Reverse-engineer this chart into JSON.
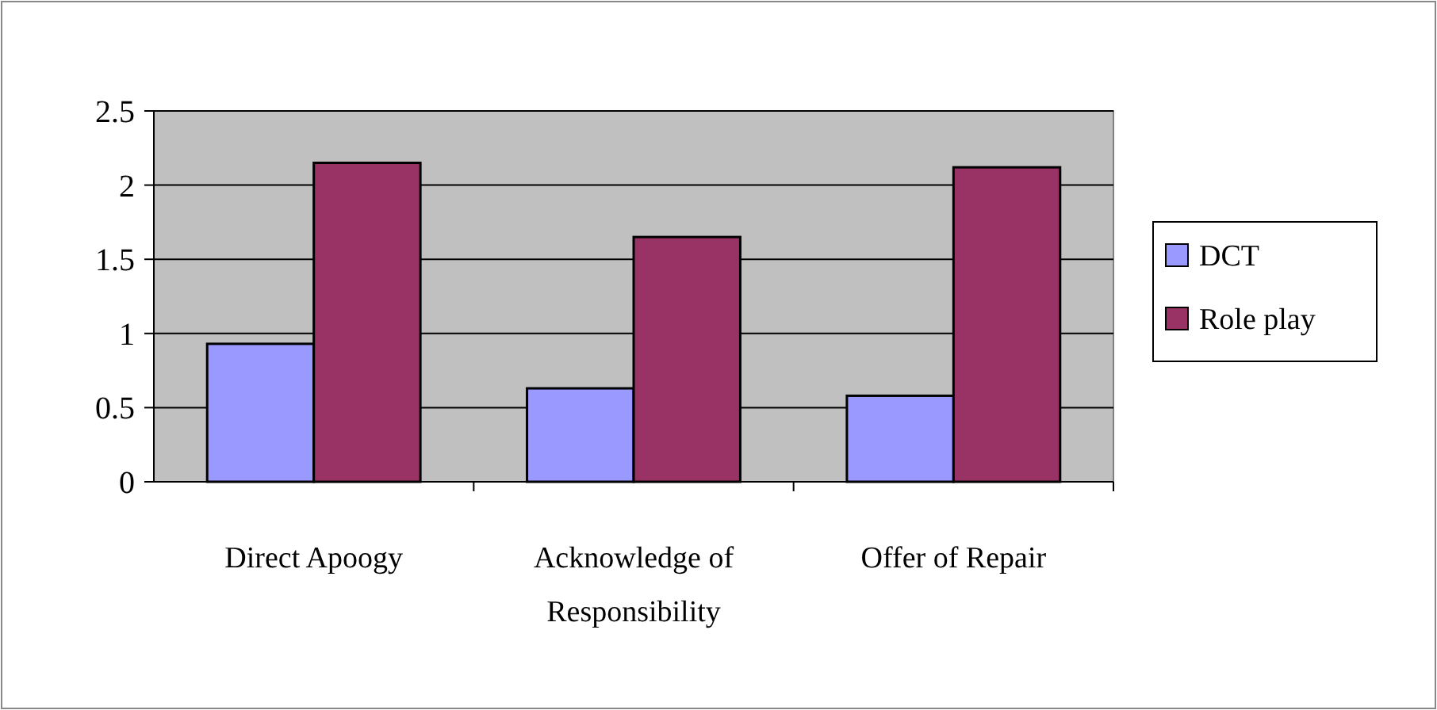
{
  "chart_data": {
    "type": "bar",
    "categories": [
      "Direct Apoogy",
      "Acknowledge of Responsibility",
      "Offer of Repair"
    ],
    "series": [
      {
        "name": "DCT",
        "color": "#9999ff",
        "values": [
          0.93,
          0.63,
          0.58
        ]
      },
      {
        "name": "Role play",
        "color": "#993366",
        "values": [
          2.15,
          1.65,
          2.12
        ]
      }
    ],
    "ylim": [
      0,
      2.5
    ],
    "yticks": [
      0,
      0.5,
      1,
      1.5,
      2,
      2.5
    ],
    "grid": "y",
    "legend": "right"
  }
}
